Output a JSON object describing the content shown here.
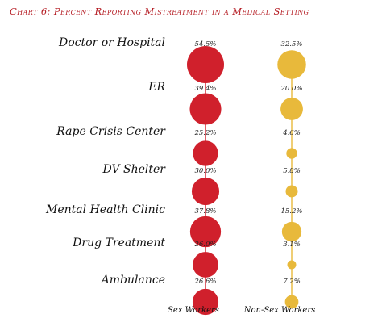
{
  "chart_data": {
    "type": "scatter",
    "title": "Chart 6: Percent Reporting Mistreatment in a Medical Setting",
    "categories": [
      "Doctor or Hospital",
      "ER",
      "Rape Crisis Center",
      "DV Shelter",
      "Mental Health Clinic",
      "Drug Treatment",
      "Ambulance"
    ],
    "series": [
      {
        "name": "Sex Workers",
        "values": [
          54.5,
          39.4,
          25.2,
          30.0,
          37.8,
          26.0,
          26.6
        ],
        "labels": [
          "54.5%",
          "39.4%",
          "25.2%",
          "30.0%",
          "37.8%",
          "26.0%",
          "26.6%"
        ],
        "color": "#d0202c"
      },
      {
        "name": "Non-Sex Workers",
        "values": [
          32.5,
          20.0,
          4.6,
          5.8,
          15.2,
          3.1,
          7.2
        ],
        "labels": [
          "32.5%",
          "20.0%",
          "4.6%",
          "5.8%",
          "15.2%",
          "3.1%",
          "7.2%"
        ],
        "color": "#e8b93b"
      }
    ],
    "grid": false
  }
}
